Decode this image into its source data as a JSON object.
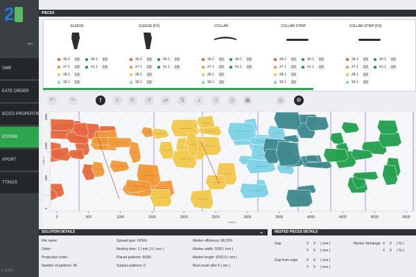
{
  "app": {
    "logo_text": "2",
    "version": "v. 0.0.0"
  },
  "nav": {
    "back_icon": "arrow-left-icon",
    "items": [
      {
        "label": "OME",
        "active": false
      },
      {
        "label": "EATE ORDER",
        "active": false
      },
      {
        "label": "IECES PROPERTIES",
        "active": false
      },
      {
        "label": "ESTING",
        "active": true
      },
      {
        "label": "XPORT",
        "active": false
      },
      {
        "label": "TTINGS",
        "active": false
      }
    ]
  },
  "pieces": {
    "header": "PIECES",
    "columns": [
      {
        "name": "SLEEVE",
        "sizes": [
          {
            "label": "36-1",
            "qty": "1/1",
            "color": "#e8693f"
          },
          {
            "label": "37-1",
            "qty": "1/1",
            "color": "#f29a3a"
          },
          {
            "label": "38-1",
            "qty": "1/1",
            "color": "#f2c94c"
          },
          {
            "label": "39-1",
            "qty": "1/1",
            "color": "#7fd3e6"
          }
        ],
        "sizes2": [
          {
            "label": "40-1",
            "qty": "1/1",
            "color": "#3e8a8f"
          },
          {
            "label": "41-1",
            "qty": "1/1",
            "color": "#23a24f"
          }
        ]
      },
      {
        "name": "SLEEVE [FX]",
        "sizes": [
          {
            "label": "36-1",
            "qty": "1/1",
            "color": "#e8693f"
          },
          {
            "label": "37-1",
            "qty": "1/1",
            "color": "#f29a3a"
          },
          {
            "label": "38-1",
            "qty": "1/1",
            "color": "#f2c94c"
          },
          {
            "label": "39-1",
            "qty": "1/1",
            "color": "#7fd3e6"
          }
        ],
        "sizes2": [
          {
            "label": "40-1",
            "qty": "1/1",
            "color": "#3e8a8f"
          },
          {
            "label": "41-1",
            "qty": "1/1",
            "color": "#23a24f"
          }
        ]
      },
      {
        "name": "COLLAR",
        "sizes": [
          {
            "label": "36-1",
            "qty": "1/1",
            "color": "#e8693f"
          },
          {
            "label": "37-1",
            "qty": "1/1",
            "color": "#f29a3a"
          },
          {
            "label": "38-1",
            "qty": "1/1",
            "color": "#f2c94c"
          },
          {
            "label": "39-1",
            "qty": "1/1",
            "color": "#7fd3e6"
          }
        ],
        "sizes2": [
          {
            "label": "40-1",
            "qty": "1/1",
            "color": "#3e8a8f"
          },
          {
            "label": "41-1",
            "qty": "1/1",
            "color": "#23a24f"
          }
        ]
      },
      {
        "name": "COLLAR STRIP",
        "sizes": [
          {
            "label": "36-1",
            "qty": "1/1",
            "color": "#e8693f"
          },
          {
            "label": "37-1",
            "qty": "1/1",
            "color": "#f29a3a"
          },
          {
            "label": "38-1",
            "qty": "1/1",
            "color": "#f2c94c"
          },
          {
            "label": "39-1",
            "qty": "1/1",
            "color": "#7fd3e6"
          }
        ],
        "sizes2": [
          {
            "label": "40-1",
            "qty": "1/1",
            "color": "#3e8a8f"
          },
          {
            "label": "41-1",
            "qty": "1/1",
            "color": "#23a24f"
          }
        ]
      },
      {
        "name": "COLLAR STRIP [FX]",
        "sizes": [
          {
            "label": "36-1",
            "qty": "1/1",
            "color": "#e8693f"
          },
          {
            "label": "37-1",
            "qty": "1/1",
            "color": "#f29a3a"
          },
          {
            "label": "38-1",
            "qty": "1/1",
            "color": "#f2c94c"
          },
          {
            "label": "39-1",
            "qty": "1/1",
            "color": "#7fd3e6"
          }
        ],
        "sizes2": [
          {
            "label": "40-1",
            "qty": "1/1",
            "color": "#3e8a8f"
          },
          {
            "label": "41-1",
            "qty": "1/1",
            "color": "#23a24f"
          }
        ]
      }
    ]
  },
  "toolbar": {
    "tools": [
      {
        "icon": "undo-icon",
        "glyph": "↶"
      },
      {
        "icon": "redo-icon",
        "glyph": "↷"
      },
      {
        "icon": "upload-icon",
        "glyph": "⇪",
        "dark": true
      },
      {
        "icon": "download-icon",
        "glyph": "⇩"
      },
      {
        "icon": "rotate-icon",
        "glyph": "↻"
      },
      {
        "icon": "rotate-ccw-icon",
        "glyph": "↺"
      },
      {
        "icon": "flip-icon",
        "glyph": "⇄"
      },
      {
        "icon": "flip-vertical-icon",
        "glyph": "⇅"
      },
      {
        "icon": "move-down-icon",
        "glyph": "⤓"
      },
      {
        "icon": "shuffle-icon",
        "glyph": "⤨"
      },
      {
        "icon": "clock-icon",
        "glyph": "◷"
      },
      {
        "icon": "grid-icon",
        "glyph": "▦"
      },
      {
        "icon": "target-icon",
        "glyph": "◎"
      },
      {
        "icon": "settings-icon",
        "glyph": "⚙",
        "dark": true
      },
      {
        "icon": "save-icon",
        "glyph": "▣",
        "dark": true
      }
    ]
  },
  "nesting": {
    "x_ticks": [
      "0",
      "500",
      "1000",
      "1500",
      "2000",
      "2500",
      "3000",
      "3500",
      "4000",
      "4500",
      "5000",
      "5500"
    ],
    "y_ticks": [
      "1600",
      "1000",
      "500",
      "0"
    ],
    "x_unit": "[ mm ]",
    "y_unit": "[ mm ]",
    "size_colors": [
      "#e8693f",
      "#f29a3a",
      "#f2c94c",
      "#7fd3e6",
      "#3e8a8f",
      "#23a24f"
    ]
  },
  "solution": {
    "header": "SOLUTION DETAILS",
    "col1": [
      "File name:",
      "Order:",
      "Production order:",
      "Number of patterns: 60"
    ],
    "col2": [
      "Spread type: OPEN",
      "Nesting time: 1 ( min ) 0 ( sec )",
      "Placed patterns: 60/60",
      "Surplus patterns: 0"
    ],
    "col3": [
      "Marker efficiency: 68,32%",
      "Marker width: 1600 ( mm )",
      "Marker length: 6202,5 ( mm )",
      "Best result after 5 ( sec )"
    ]
  },
  "nested": {
    "header": "NESTED PIECES DETAILS",
    "gap_label": "Gap",
    "gap_x": "X",
    "gap_x_val": "0",
    "gap_unit": "( mm )",
    "gap_y": "Y",
    "gap_y_val": "0",
    "gap_y_unit": "( mm )",
    "shrink_label": "Marker shrinkage",
    "shrink_x": "X",
    "shrink_x_val": "0",
    "shrink_unit": "( % )",
    "shrink_y": "Y",
    "shrink_y_val": "0",
    "shrink_y_unit": "( % )",
    "edge_label": "Gap from edge",
    "edge_x": "X",
    "edge_x_val": "0",
    "edge_unit": "( mm )",
    "edge_y": "Y",
    "edge_y_val": "0",
    "edge_y_unit": "( mm )"
  }
}
